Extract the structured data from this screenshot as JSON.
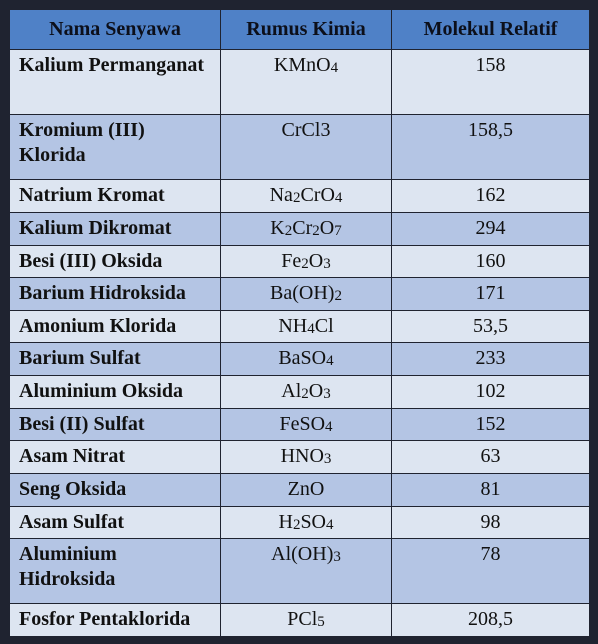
{
  "table": {
    "headers": [
      "Nama Senyawa",
      "Rumus Kimia",
      "Molekul Relatif"
    ],
    "rows": [
      {
        "name": "Kalium Permanganat",
        "formula": "KMnO4",
        "formula_html": "KMnO<sub>4</sub>",
        "mr": "158"
      },
      {
        "name": "Kromium (III) Klorida",
        "formula": "CrCl3",
        "formula_html": "CrCl3",
        "mr": "158,5"
      },
      {
        "name": "Natrium Kromat",
        "formula": "Na2CrO4",
        "formula_html": "Na<sub>2</sub>CrO<sub>4</sub>",
        "mr": "162"
      },
      {
        "name": "Kalium Dikromat",
        "formula": "K2Cr2O7",
        "formula_html": "K<sub>2</sub>Cr<sub>2</sub>O<sub>7</sub>",
        "mr": "294"
      },
      {
        "name": "Besi (III) Oksida",
        "formula": "Fe2O3",
        "formula_html": "Fe<sub>2</sub>O<sub>3</sub>",
        "mr": "160"
      },
      {
        "name": "Barium Hidroksida",
        "formula": "Ba(OH)2",
        "formula_html": "Ba(OH)<sub>2</sub>",
        "mr": "171"
      },
      {
        "name": "Amonium Klorida",
        "formula": "NH4Cl",
        "formula_html": "NH<sub>4</sub>Cl",
        "mr": "53,5"
      },
      {
        "name": "Barium Sulfat",
        "formula": "BaSO4",
        "formula_html": "BaSO<sub>4</sub>",
        "mr": "233"
      },
      {
        "name": "Aluminium Oksida",
        "formula": "Al2O3",
        "formula_html": "Al<sub>2</sub>O<sub>3</sub>",
        "mr": "102"
      },
      {
        "name": "Besi (II) Sulfat",
        "formula": "FeSO4",
        "formula_html": "FeSO<sub>4</sub>",
        "mr": "152"
      },
      {
        "name": "Asam Nitrat",
        "formula": "HNO3",
        "formula_html": "HNO<sub>3</sub>",
        "mr": "63"
      },
      {
        "name": "Seng Oksida",
        "formula": "ZnO",
        "formula_html": "ZnO",
        "mr": "81"
      },
      {
        "name": "Asam Sulfat",
        "formula": "H2SO4",
        "formula_html": "H<sub>2</sub>SO<sub>4</sub>",
        "mr": "98"
      },
      {
        "name": "Aluminium Hidroksida",
        "formula": "Al(OH)3",
        "formula_html": "Al(OH)<sub>3</sub>",
        "mr": "78"
      },
      {
        "name": "Fosfor Pentaklorida",
        "formula": "PCl5",
        "formula_html": "PCl<sub>5</sub>",
        "mr": "208,5"
      }
    ]
  },
  "colors": {
    "header_bg": "#4f81c7",
    "row_light": "#dde5f1",
    "row_dark": "#b4c5e4",
    "border": "#1f2330"
  }
}
